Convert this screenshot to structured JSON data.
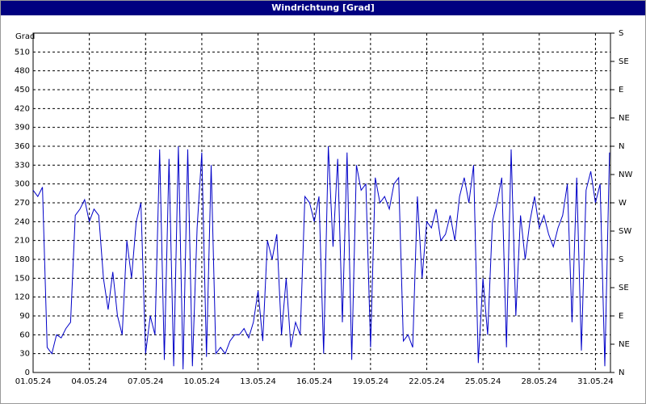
{
  "chart_data": {
    "type": "line",
    "title": "Windrichtung [Grad]",
    "y_label": "Grad",
    "x": [
      0,
      0.25,
      0.5,
      0.75,
      1,
      1.25,
      1.5,
      1.75,
      2,
      2.25,
      2.5,
      2.75,
      3,
      3.25,
      3.5,
      3.75,
      4,
      4.25,
      4.5,
      4.75,
      5,
      5.25,
      5.5,
      5.75,
      6,
      6.25,
      6.5,
      6.75,
      7,
      7.25,
      7.5,
      7.75,
      8,
      8.25,
      8.5,
      8.75,
      9,
      9.25,
      9.5,
      9.75,
      10,
      10.25,
      10.5,
      10.75,
      11,
      11.25,
      11.5,
      11.75,
      12,
      12.25,
      12.5,
      12.75,
      13,
      13.25,
      13.5,
      13.75,
      14,
      14.25,
      14.5,
      14.75,
      15,
      15.25,
      15.5,
      15.75,
      16,
      16.25,
      16.5,
      16.75,
      17,
      17.25,
      17.5,
      17.75,
      18,
      18.25,
      18.5,
      18.75,
      19,
      19.25,
      19.5,
      19.75,
      20,
      20.25,
      20.5,
      20.75,
      21,
      21.25,
      21.5,
      21.75,
      22,
      22.25,
      22.5,
      22.75,
      23,
      23.25,
      23.5,
      23.75,
      24,
      24.25,
      24.5,
      24.75,
      25,
      25.25,
      25.5,
      25.75,
      26,
      26.25,
      26.5,
      26.75,
      27,
      27.25,
      27.5,
      27.75,
      28,
      28.25,
      28.5,
      28.75,
      29,
      29.25,
      29.5,
      29.75,
      30,
      30.25,
      30.5,
      30.75
    ],
    "series": [
      {
        "name": "Windrichtung",
        "color": "#0000c8",
        "values": [
          290,
          280,
          295,
          40,
          30,
          60,
          55,
          70,
          80,
          250,
          260,
          275,
          240,
          260,
          250,
          150,
          100,
          160,
          90,
          60,
          210,
          150,
          240,
          270,
          30,
          90,
          60,
          355,
          20,
          340,
          10,
          360,
          5,
          355,
          10,
          230,
          350,
          25,
          330,
          30,
          40,
          30,
          50,
          60,
          60,
          70,
          55,
          80,
          130,
          50,
          210,
          180,
          220,
          60,
          150,
          40,
          80,
          60,
          280,
          270,
          240,
          280,
          30,
          360,
          200,
          340,
          80,
          350,
          20,
          330,
          290,
          300,
          40,
          310,
          270,
          280,
          260,
          300,
          310,
          50,
          60,
          40,
          280,
          150,
          240,
          230,
          260,
          210,
          220,
          250,
          210,
          280,
          310,
          270,
          330,
          15,
          150,
          60,
          240,
          270,
          310,
          40,
          355,
          90,
          250,
          180,
          240,
          280,
          230,
          250,
          220,
          200,
          230,
          250,
          300,
          80,
          310,
          35,
          290,
          320,
          270,
          300,
          10,
          350
        ]
      }
    ],
    "xlim": [
      0,
      30.8
    ],
    "xticks": [
      {
        "value": 0,
        "label": "01.05.24"
      },
      {
        "value": 3,
        "label": "04.05.24"
      },
      {
        "value": 6,
        "label": "07.05.24"
      },
      {
        "value": 9,
        "label": "10.05.24"
      },
      {
        "value": 12,
        "label": "13.05.24"
      },
      {
        "value": 15,
        "label": "16.05.24"
      },
      {
        "value": 18,
        "label": "19.05.24"
      },
      {
        "value": 21,
        "label": "22.05.24"
      },
      {
        "value": 24,
        "label": "25.05.24"
      },
      {
        "value": 27,
        "label": "28.05.24"
      },
      {
        "value": 30,
        "label": "31.05.24"
      }
    ],
    "ylim": [
      0,
      540
    ],
    "yticks": [
      0,
      30,
      60,
      90,
      120,
      150,
      180,
      210,
      240,
      270,
      300,
      330,
      360,
      390,
      420,
      450,
      480,
      510
    ],
    "y2lim": [
      0,
      540
    ],
    "y2ticks": [
      {
        "value": 0,
        "label": "N"
      },
      {
        "value": 45,
        "label": "NE"
      },
      {
        "value": 90,
        "label": "E"
      },
      {
        "value": 135,
        "label": "SE"
      },
      {
        "value": 180,
        "label": "S"
      },
      {
        "value": 225,
        "label": "SW"
      },
      {
        "value": 270,
        "label": "W"
      },
      {
        "value": 315,
        "label": "NW"
      },
      {
        "value": 360,
        "label": "N"
      },
      {
        "value": 405,
        "label": "NE"
      },
      {
        "value": 450,
        "label": "E"
      },
      {
        "value": 495,
        "label": "SE"
      },
      {
        "value": 540,
        "label": "S"
      }
    ],
    "grid": true
  }
}
